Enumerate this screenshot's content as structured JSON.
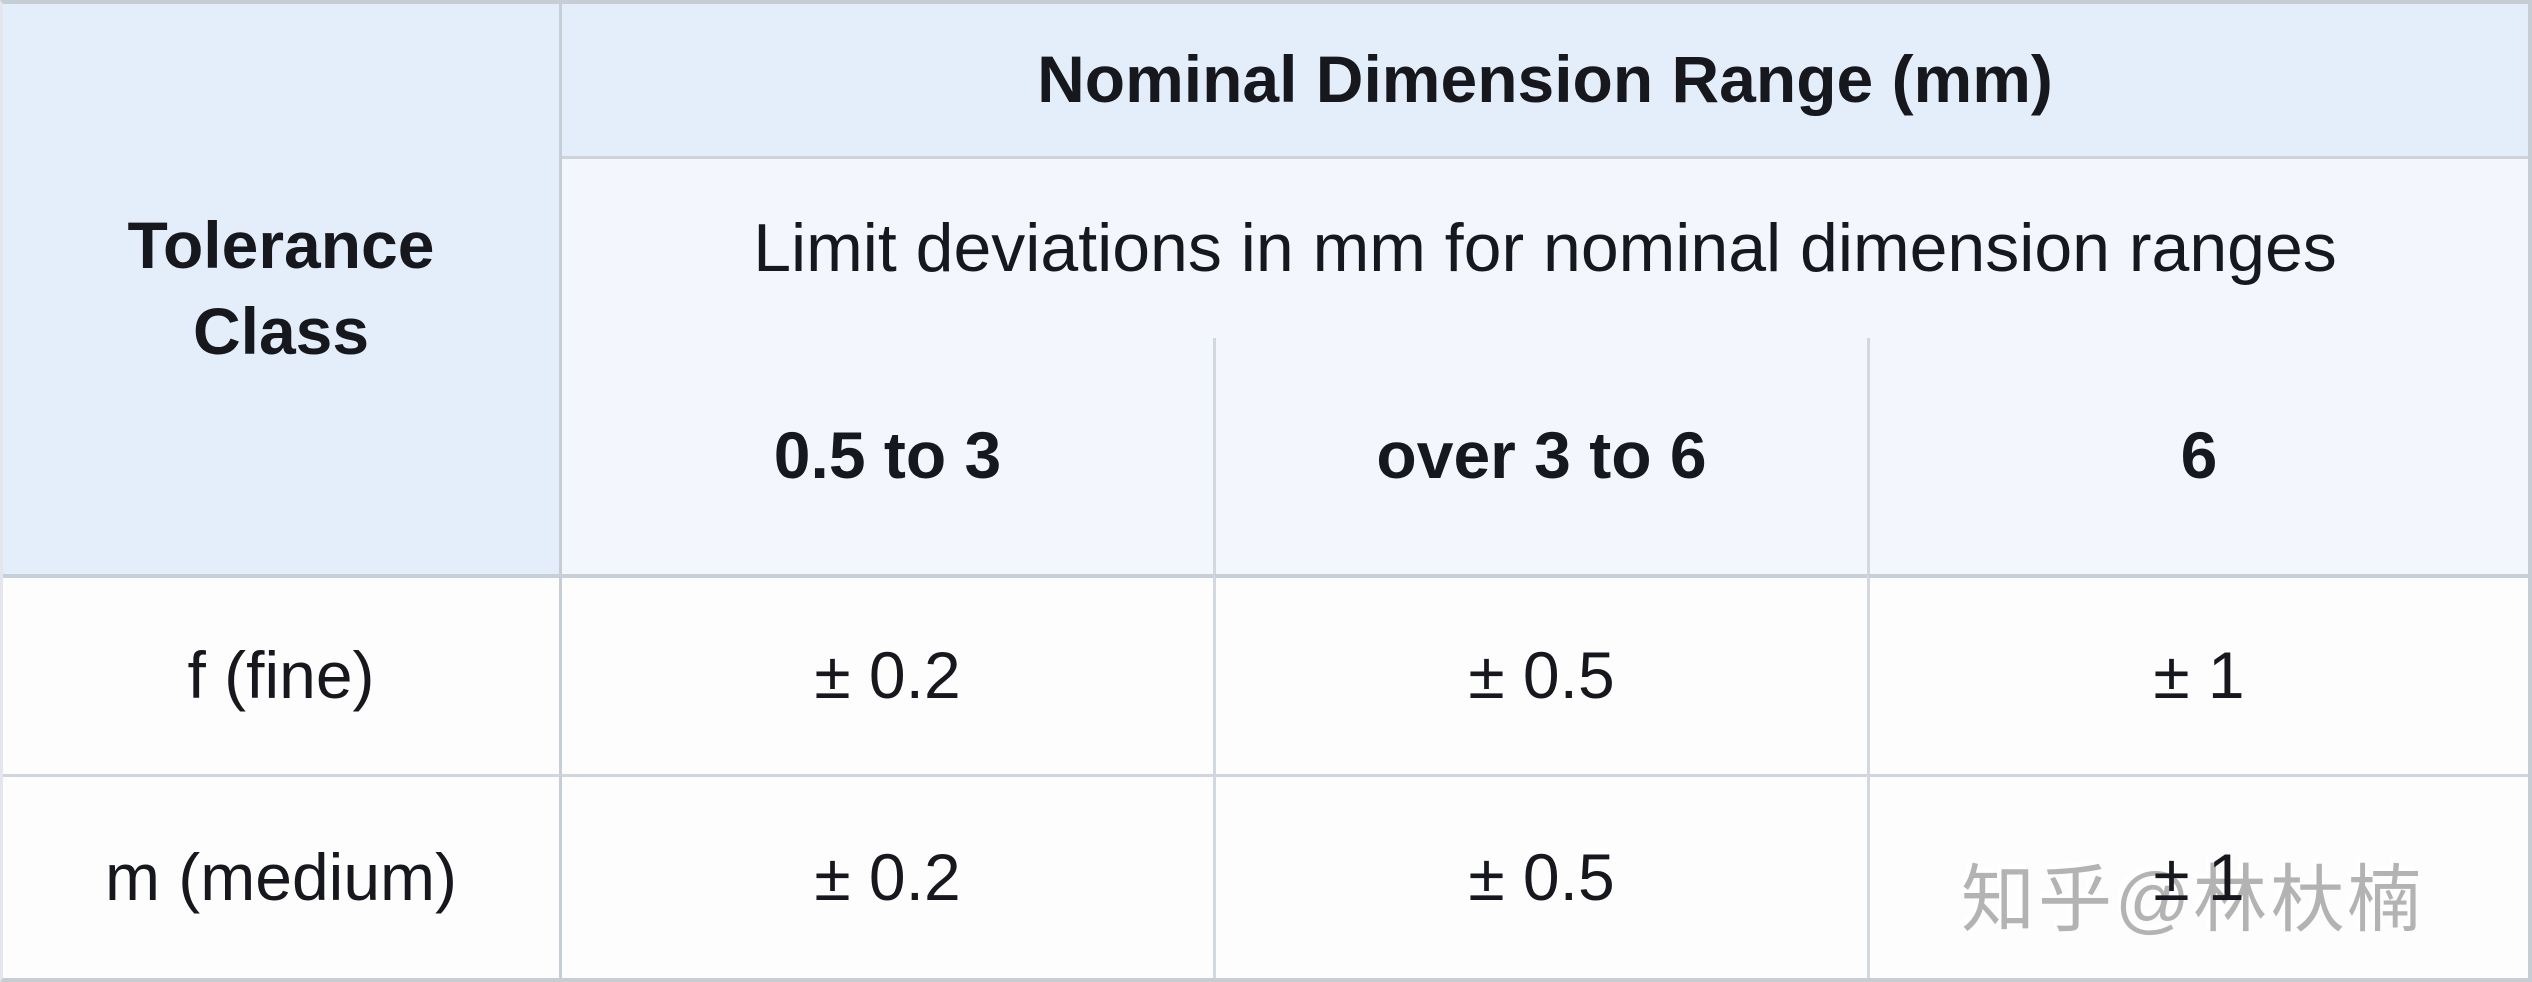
{
  "table": {
    "corner_header": "Tolerance Class",
    "group_header": "Nominal Dimension Range (mm)",
    "sub_header": "Limit deviations in mm for nominal dimension ranges",
    "range_headers": [
      "0.5 to 3",
      "over 3 to 6",
      "6"
    ],
    "rows": [
      {
        "label": "f (fine)",
        "values": [
          "± 0.2",
          "± 0.5",
          "± 1"
        ]
      },
      {
        "label": "m (medium)",
        "values": [
          "± 0.2",
          "± 0.5",
          "± 1"
        ]
      }
    ]
  },
  "watermark": "知乎@林杕楠",
  "colors": {
    "header_blue": "#e4edfa",
    "subheader_blue": "#f3f7fd",
    "cell_white": "#fdfdfe",
    "border_gray": "#c6cdd5",
    "border_light": "#d3d8e0",
    "text": "#16181d",
    "watermark_gray": "#b3b3b3"
  }
}
